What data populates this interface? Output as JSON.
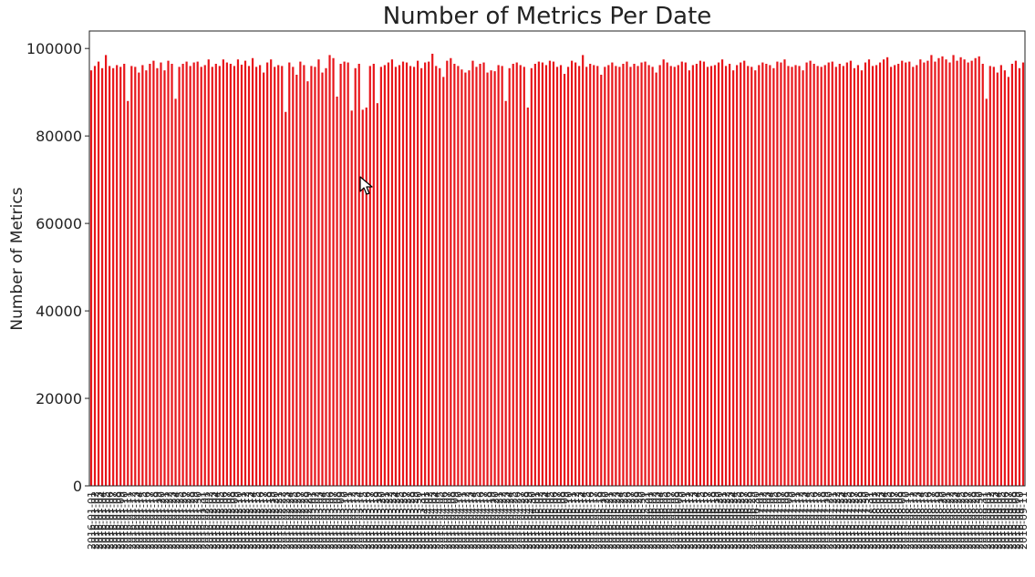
{
  "chart_data": {
    "type": "bar",
    "title": "Number of Metrics Per Date",
    "ylabel": "Number of Metrics",
    "xlabel": "",
    "ylim": [
      0,
      104000
    ],
    "yticks": [
      0,
      20000,
      40000,
      60000,
      80000,
      100000
    ],
    "x_start": "2016-01-01",
    "values": [
      95000,
      96000,
      97000,
      95500,
      98500,
      96000,
      95500,
      96200,
      95800,
      96500,
      88000,
      96000,
      95800,
      94500,
      96200,
      95000,
      96500,
      97200,
      95500,
      96800,
      95000,
      97200,
      96500,
      88500,
      95800,
      96500,
      97000,
      96000,
      96800,
      97000,
      95800,
      96200,
      97500,
      95800,
      96500,
      96000,
      97500,
      96800,
      96500,
      96000,
      97500,
      96300,
      97200,
      96000,
      97800,
      95800,
      96200,
      94500,
      96800,
      97500,
      95800,
      96200,
      96000,
      85500,
      96800,
      95800,
      94000,
      97000,
      96200,
      92500,
      96000,
      95800,
      97500,
      94500,
      95500,
      98500,
      97800,
      89000,
      96500,
      97000,
      96800,
      85800,
      95500,
      96500,
      86000,
      86500,
      96000,
      96500,
      87500,
      95800,
      96200,
      96800,
      97500,
      95800,
      96200,
      97000,
      96800,
      96000,
      95800,
      97200,
      95500,
      96800,
      97000,
      98800,
      96000,
      95500,
      93500,
      97200,
      97800,
      96500,
      96000,
      95200,
      94500,
      95000,
      97200,
      95800,
      96500,
      96800,
      94500,
      95000,
      94800,
      96200,
      96000,
      88000,
      95500,
      96500,
      96800,
      96200,
      95800,
      86500,
      95500,
      96500,
      97000,
      96800,
      96200,
      97200,
      97000,
      95800,
      96200,
      94200,
      95800,
      97200,
      96800,
      96000,
      98500,
      95800,
      96500,
      96200,
      96000,
      94000,
      95800,
      96200,
      96800,
      96000,
      95800,
      96500,
      97000,
      95800,
      96500,
      96000,
      96800,
      97000,
      96200,
      95800,
      94500,
      96200,
      97500,
      96800,
      96000,
      95800,
      96200,
      97000,
      96800,
      95000,
      96200,
      96500,
      97200,
      97000,
      95800,
      96000,
      96200,
      96800,
      97500,
      96000,
      96500,
      95000,
      96200,
      96800,
      97200,
      96000,
      95800,
      95000,
      96200,
      96800,
      96500,
      96200,
      95500,
      97000,
      96800,
      97500,
      96000,
      95800,
      96200,
      96000,
      95000,
      96800,
      97200,
      96500,
      96000,
      95800,
      96200,
      96800,
      97000,
      95800,
      96500,
      96000,
      96800,
      97200,
      95500,
      96200,
      95000,
      96800,
      97500,
      96000,
      96200,
      96800,
      97500,
      98000,
      95800,
      96200,
      96500,
      97200,
      96800,
      97000,
      95800,
      96200,
      97500,
      96800,
      97200,
      98500,
      97000,
      97800,
      98200,
      97500,
      96800,
      98500,
      97200,
      98000,
      97500,
      96800,
      97200,
      97800,
      98200,
      96500,
      88500,
      96000,
      95800,
      94500,
      96200,
      95000,
      93500,
      96500,
      97200,
      95500,
      96800
    ]
  }
}
